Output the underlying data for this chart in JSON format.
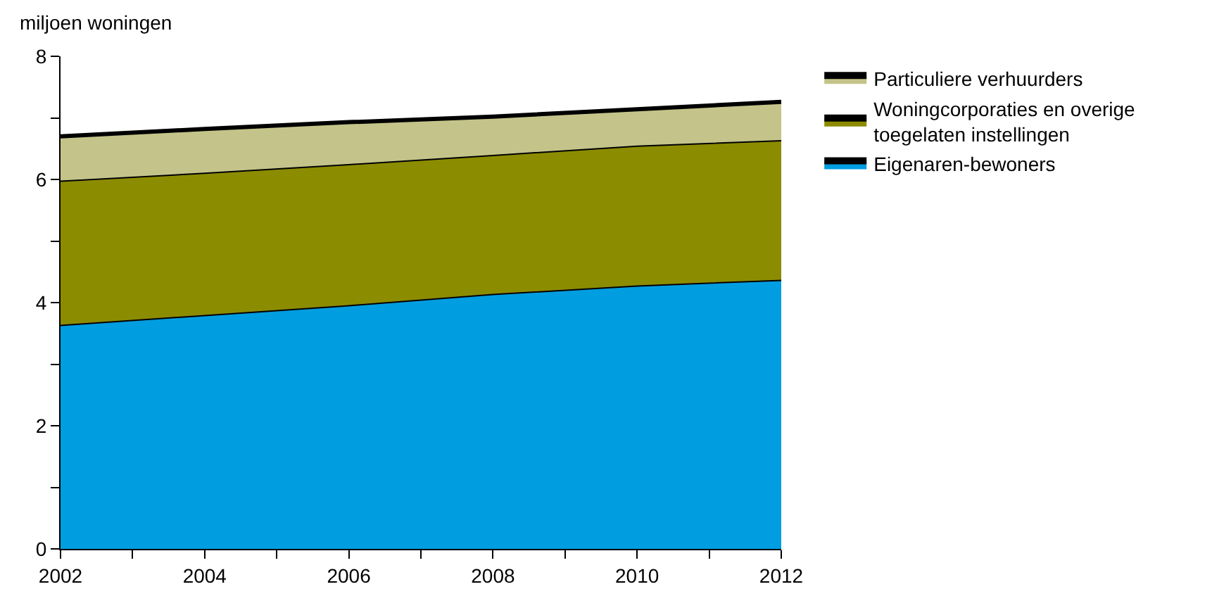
{
  "chart_data": {
    "type": "area",
    "stacked": true,
    "ylabel": "miljoen woningen",
    "x": [
      2002,
      2004,
      2006,
      2008,
      2010,
      2012
    ],
    "xlim": [
      2002,
      2012
    ],
    "xticks": [
      2002,
      {
        "value": 2003,
        "label": null
      },
      2004,
      {
        "value": 2005,
        "label": null
      },
      2006,
      {
        "value": 2007,
        "label": null
      },
      2008,
      {
        "value": 2009,
        "label": null
      },
      2010,
      {
        "value": 2011,
        "label": null
      },
      2012
    ],
    "ylim": [
      0,
      8
    ],
    "yticks": [
      0,
      {
        "value": 1,
        "label": null
      },
      2,
      {
        "value": 3,
        "label": null
      },
      4,
      {
        "value": 5,
        "label": null
      },
      6,
      {
        "value": 7,
        "label": null
      },
      8
    ],
    "legend": "right",
    "series": [
      {
        "name": "Eigenaren-bewoners",
        "color": "#009de0",
        "values": [
          3.63,
          3.79,
          3.95,
          4.13,
          4.27,
          4.36
        ]
      },
      {
        "name": "Woningcorporaties en overige\ntoegelaten instellingen",
        "color": "#8c8c00",
        "values": [
          2.34,
          2.31,
          2.29,
          2.26,
          2.27,
          2.27
        ]
      },
      {
        "name": "Particuliere verhuurders",
        "color": "#c4c48a",
        "values": [
          0.73,
          0.72,
          0.69,
          0.63,
          0.6,
          0.63
        ]
      }
    ]
  }
}
